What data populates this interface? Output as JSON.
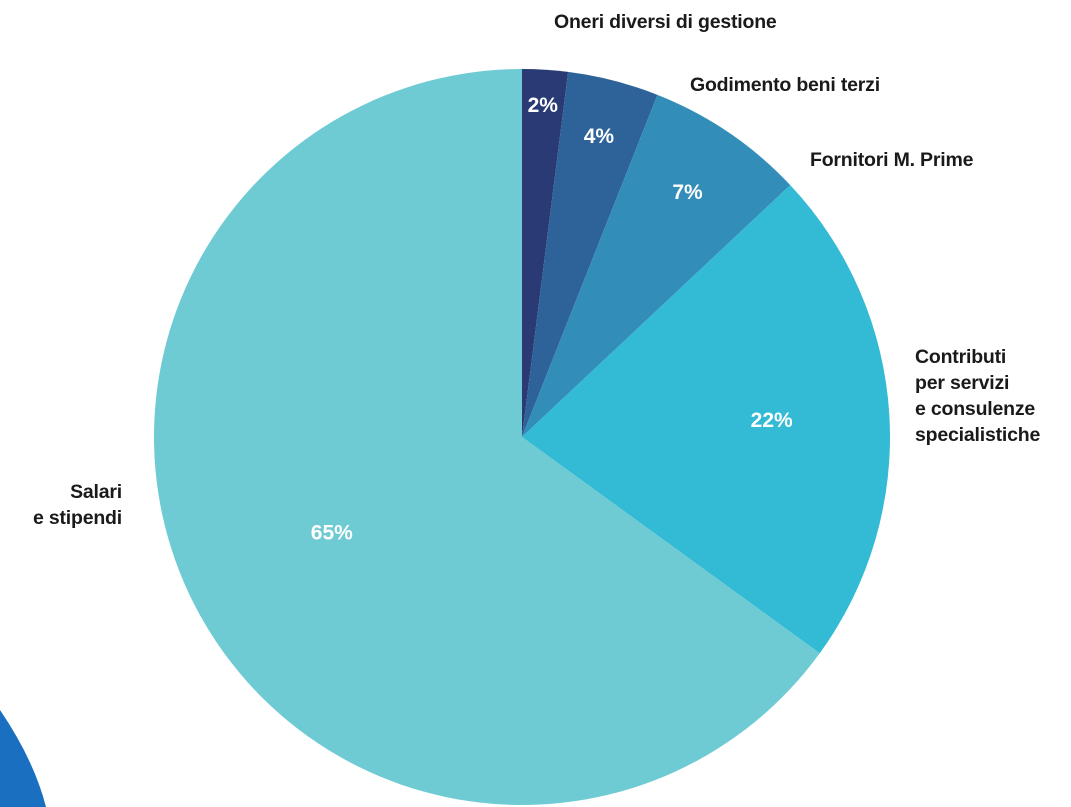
{
  "chart_data": {
    "type": "pie",
    "start_angle": "12 o'clock, clockwise",
    "slices": [
      {
        "label": "Oneri diversi di gestione",
        "value": 2,
        "value_label": "2%",
        "color": "#293a74"
      },
      {
        "label": "Godimento beni terzi",
        "value": 4,
        "value_label": "4%",
        "color": "#2e6399"
      },
      {
        "label": "Fornitori M. Prime",
        "value": 7,
        "value_label": "7%",
        "color": "#328eb8"
      },
      {
        "label": "Contributi per servizi e consulenze specialistiche",
        "value": 22,
        "value_label": "22%",
        "color": "#33bad5"
      },
      {
        "label": "Salari e stipendi",
        "value": 65,
        "value_label": "65%",
        "color": "#6ecbd3"
      }
    ]
  },
  "labels": {
    "oneri": "Oneri diversi di gestione",
    "godimento": "Godimento beni terzi",
    "fornitori": "Fornitori M. Prime",
    "contributi": [
      "Contributi",
      "per servizi",
      "e consulenze",
      "specialistiche"
    ],
    "salari": [
      "Salari",
      "e stipendi"
    ]
  },
  "decoration": {
    "accent_color": "#1a6fc0"
  }
}
